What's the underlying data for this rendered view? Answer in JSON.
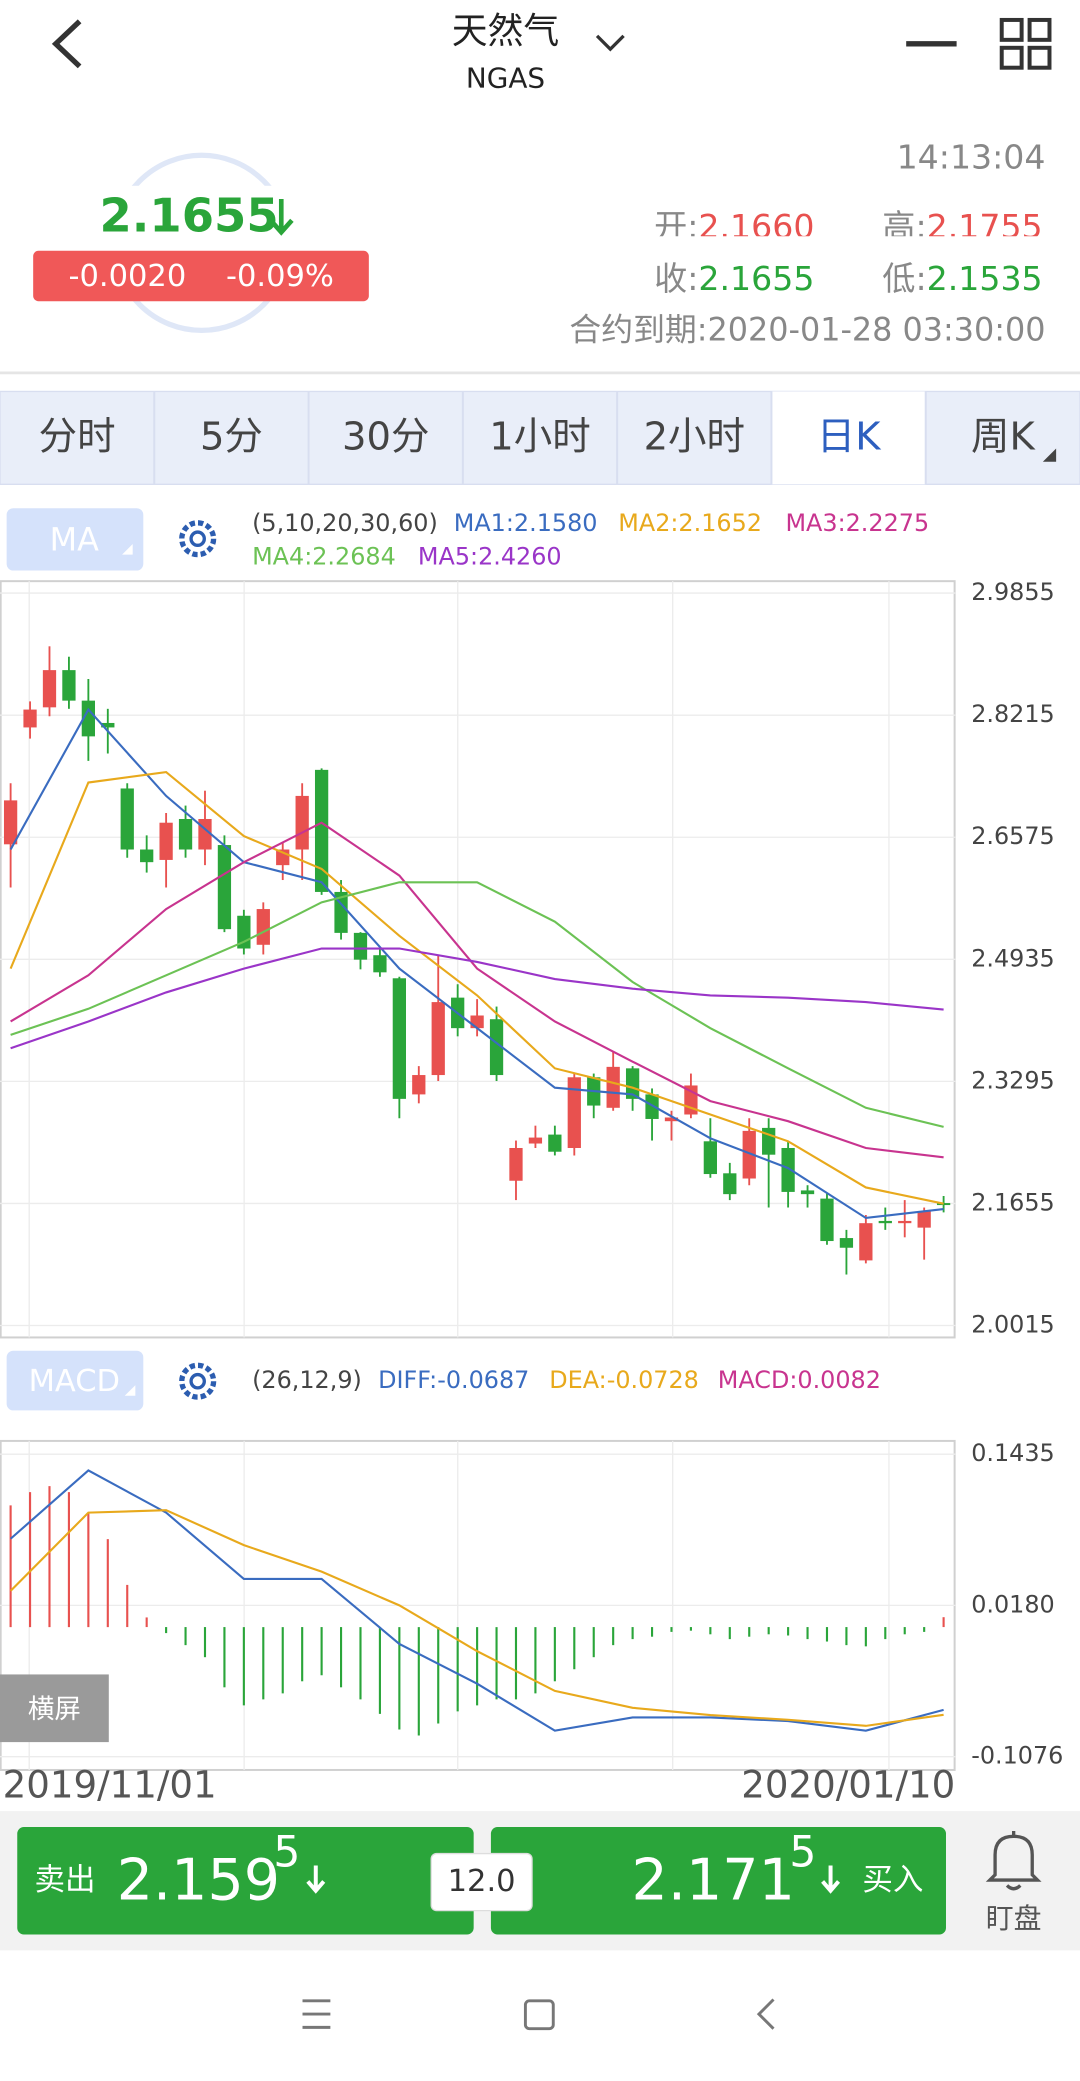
{
  "header": {
    "title": "天然气",
    "symbol": "NGAS"
  },
  "quote": {
    "price": "2.1655",
    "change": "-0.0020",
    "change_pct": "-0.09%",
    "time": "14:13:04",
    "open_label": "开:",
    "open": "2.1660",
    "high_label": "高:",
    "high": "2.1755",
    "close_label": "收:",
    "close": "2.1655",
    "low_label": "低:",
    "low": "2.1535",
    "expiry": "合约到期:2020-01-28 03:30:00"
  },
  "tabs": {
    "items": [
      "分时",
      "5分",
      "30分",
      "1小时",
      "2小时",
      "日K",
      "周K"
    ],
    "active": 5
  },
  "chart_data": [
    {
      "type": "candlestick",
      "indicator": "MA",
      "params": "(5,10,20,30,60)",
      "open": [
        2.648,
        2.805,
        2.832,
        2.882,
        2.841,
        2.811,
        2.723,
        2.641,
        2.627,
        2.682,
        2.641,
        2.647,
        2.552,
        2.513,
        2.62,
        2.641,
        2.748,
        2.584,
        2.529,
        2.499,
        2.468,
        2.312,
        2.338,
        2.442,
        2.401,
        2.413,
        2.196,
        2.246,
        2.258,
        2.24,
        2.335,
        2.294,
        2.347,
        2.312,
        2.276,
        2.285,
        2.249,
        2.206,
        2.199,
        2.267,
        2.24,
        2.183,
        2.172,
        2.119,
        2.089,
        2.142,
        2.139,
        2.133,
        2.166
      ],
      "high": [
        2.73,
        2.84,
        2.914,
        2.9,
        2.87,
        2.83,
        2.73,
        2.66,
        2.69,
        2.7,
        2.72,
        2.66,
        2.56,
        2.57,
        2.65,
        2.73,
        2.75,
        2.6,
        2.53,
        2.51,
        2.47,
        2.35,
        2.5,
        2.46,
        2.44,
        2.43,
        2.25,
        2.27,
        2.27,
        2.34,
        2.34,
        2.37,
        2.35,
        2.32,
        2.29,
        2.34,
        2.28,
        2.22,
        2.28,
        2.28,
        2.25,
        2.19,
        2.18,
        2.13,
        2.15,
        2.16,
        2.17,
        2.16,
        2.1755
      ],
      "low": [
        2.59,
        2.79,
        2.82,
        2.83,
        2.76,
        2.77,
        2.63,
        2.61,
        2.59,
        2.63,
        2.62,
        2.53,
        2.5,
        2.5,
        2.6,
        2.6,
        2.58,
        2.52,
        2.48,
        2.47,
        2.28,
        2.3,
        2.33,
        2.39,
        2.39,
        2.33,
        2.17,
        2.24,
        2.23,
        2.23,
        2.28,
        2.29,
        2.29,
        2.25,
        2.25,
        2.28,
        2.2,
        2.17,
        2.19,
        2.16,
        2.16,
        2.16,
        2.11,
        2.07,
        2.085,
        2.13,
        2.12,
        2.09,
        2.1535
      ],
      "close": [
        2.707,
        2.829,
        2.882,
        2.841,
        2.793,
        2.805,
        2.641,
        2.624,
        2.677,
        2.641,
        2.682,
        2.534,
        2.508,
        2.561,
        2.641,
        2.713,
        2.584,
        2.529,
        2.493,
        2.476,
        2.306,
        2.338,
        2.436,
        2.401,
        2.418,
        2.338,
        2.24,
        2.254,
        2.235,
        2.335,
        2.297,
        2.349,
        2.306,
        2.279,
        2.281,
        2.324,
        2.205,
        2.178,
        2.263,
        2.231,
        2.181,
        2.178,
        2.115,
        2.106,
        2.139,
        2.139,
        2.142,
        2.155,
        2.1655
      ],
      "up_color": "#e8514f",
      "down_color": "#2aa53a",
      "ylim": [
        1.9855,
        3.0015
      ],
      "yticks": [
        2.9855,
        2.8215,
        2.6575,
        2.4935,
        2.3295,
        2.1655,
        2.0015
      ],
      "ma_x": [
        0,
        4,
        8,
        12,
        16,
        20,
        24,
        28,
        32,
        36,
        40,
        44,
        48
      ],
      "series": [
        {
          "label": "MA1:2.1580",
          "color": "#3a6cc0",
          "values": [
            2.641,
            2.829,
            2.713,
            2.624,
            2.597,
            2.481,
            2.401,
            2.321,
            2.312,
            2.253,
            2.213,
            2.146,
            2.158
          ]
        },
        {
          "label": "MA2:2.1652",
          "color": "#e8a91c",
          "values": [
            2.481,
            2.731,
            2.745,
            2.659,
            2.615,
            2.525,
            2.445,
            2.347,
            2.321,
            2.285,
            2.249,
            2.187,
            2.1652
          ]
        },
        {
          "label": "MA3:2.2275",
          "color": "#c8348f",
          "values": [
            2.41,
            2.472,
            2.561,
            2.624,
            2.677,
            2.606,
            2.481,
            2.41,
            2.356,
            2.303,
            2.276,
            2.24,
            2.2275
          ]
        },
        {
          "label": "MA4:2.2684",
          "color": "#6cc255",
          "values": [
            2.392,
            2.427,
            2.472,
            2.517,
            2.57,
            2.597,
            2.597,
            2.544,
            2.463,
            2.401,
            2.347,
            2.294,
            2.2684
          ]
        },
        {
          "label": "MA5:2.4260",
          "color": "#9a35c8",
          "values": [
            2.374,
            2.41,
            2.449,
            2.481,
            2.508,
            2.508,
            2.49,
            2.467,
            2.454,
            2.445,
            2.442,
            2.436,
            2.426
          ]
        }
      ],
      "x_labels": [
        "2019/11/01",
        "2020/01/10"
      ]
    },
    {
      "type": "macd",
      "indicator": "MACD",
      "params": "(26,12,9)",
      "histogram": [
        0.101,
        0.112,
        0.117,
        0.112,
        0.095,
        0.073,
        0.035,
        0.008,
        -0.005,
        -0.015,
        -0.025,
        -0.05,
        -0.065,
        -0.06,
        -0.055,
        -0.045,
        -0.04,
        -0.05,
        -0.06,
        -0.072,
        -0.085,
        -0.09,
        -0.08,
        -0.07,
        -0.065,
        -0.06,
        -0.06,
        -0.055,
        -0.045,
        -0.035,
        -0.025,
        -0.015,
        -0.01,
        -0.008,
        -0.004,
        -0.003,
        -0.006,
        -0.01,
        -0.008,
        -0.006,
        -0.007,
        -0.01,
        -0.012,
        -0.015,
        -0.016,
        -0.01,
        -0.006,
        -0.004,
        0.0082
      ],
      "up_color": "#e8514f",
      "down_color": "#2aa53a",
      "ylim": [
        -0.1186,
        0.1545
      ],
      "yticks": [
        0.1435,
        {
          "value": 0.018,
          "label": "0.0180"
        },
        -0.1076
      ],
      "x": [
        0,
        4,
        8,
        12,
        16,
        20,
        24,
        28,
        32,
        36,
        40,
        44,
        48
      ],
      "series": [
        {
          "label": "DIFF:-0.0687",
          "color": "#3a6cc0",
          "values": [
            0.0733,
            0.13,
            0.095,
            0.04,
            0.04,
            -0.014,
            -0.047,
            -0.086,
            -0.075,
            -0.075,
            -0.078,
            -0.086,
            -0.0687
          ]
        },
        {
          "label": "DEA:-0.0728",
          "color": "#e8a91c",
          "values": [
            0.03,
            0.095,
            0.097,
            0.068,
            0.046,
            0.018,
            -0.02,
            -0.053,
            -0.067,
            -0.073,
            -0.077,
            -0.082,
            -0.0728
          ]
        }
      ],
      "macd_label": {
        "label": "MACD:0.0082",
        "color": "#c8348f"
      }
    }
  ],
  "toggle": "横屏",
  "trade": {
    "sell_label": "卖出",
    "sell_price": "2.159",
    "sell_pip": "5",
    "lot": "12.0",
    "buy_price": "2.171",
    "buy_pip": "5",
    "buy_label": "买入",
    "watch": "盯盘"
  }
}
